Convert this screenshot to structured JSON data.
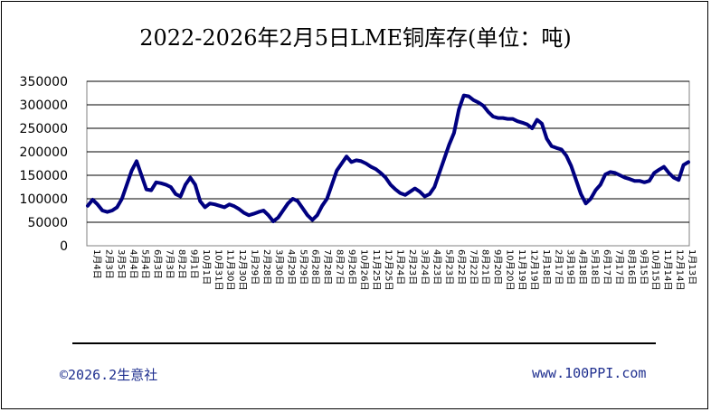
{
  "title": "2022-2026年2月5日LME铜库存(单位：吨)",
  "footer": {
    "copyright": "©2026.2生意社",
    "website": "www.100PPI.com"
  },
  "colors": {
    "line": "#000080",
    "footer_text": "#1f2f8f"
  },
  "chart_data": {
    "type": "line",
    "title": "2022-2026年2月5日LME铜库存(单位：吨)",
    "ylim": [
      0,
      350000
    ],
    "yticks": [
      0,
      50000,
      100000,
      150000,
      200000,
      250000,
      300000,
      350000
    ],
    "grid": true,
    "xlabels": [
      "1月4日",
      "2月3日",
      "3月5日",
      "4月4日",
      "5月4日",
      "6月3日",
      "7月3日",
      "8月2日",
      "9月1日",
      "10月1日",
      "10月31日",
      "11月30日",
      "12月30日",
      "1月29日",
      "2月28日",
      "3月30日",
      "4月29日",
      "5月29日",
      "6月28日",
      "7月28日",
      "8月27日",
      "9月26日",
      "10月26日",
      "11月25日",
      "12月25日",
      "1月24日",
      "2月23日",
      "3月24日",
      "4月23日",
      "5月23日",
      "6月22日",
      "7月22日",
      "8月21日",
      "9月20日",
      "10月20日",
      "11月19日",
      "12月19日",
      "1月18日",
      "2月17日",
      "3月19日",
      "4月18日",
      "5月18日",
      "6月17日",
      "7月17日",
      "8月16日",
      "9月15日",
      "10月15日",
      "11月14日",
      "12月14日",
      "1月13日"
    ],
    "series": [
      {
        "values": [
          85000,
          98000,
          88000,
          75000,
          72000,
          75000,
          82000,
          100000,
          130000,
          160000,
          180000,
          150000,
          120000,
          118000,
          135000,
          133000,
          130000,
          125000,
          110000,
          105000,
          130000,
          145000,
          130000,
          95000,
          82000,
          90000,
          88000,
          85000,
          82000,
          88000,
          84000,
          78000,
          70000,
          65000,
          68000,
          72000,
          75000,
          65000,
          52000,
          60000,
          75000,
          90000,
          100000,
          95000,
          80000,
          65000,
          55000,
          65000,
          85000,
          100000,
          130000,
          160000,
          175000,
          190000,
          178000,
          182000,
          180000,
          175000,
          168000,
          163000,
          155000,
          145000,
          130000,
          120000,
          112000,
          108000,
          115000,
          122000,
          115000,
          105000,
          110000,
          125000,
          155000,
          185000,
          215000,
          240000,
          290000,
          320000,
          318000,
          310000,
          305000,
          298000,
          285000,
          275000,
          272000,
          272000,
          270000,
          270000,
          265000,
          262000,
          258000,
          250000,
          268000,
          260000,
          228000,
          212000,
          208000,
          205000,
          192000,
          170000,
          140000,
          110000,
          90000,
          100000,
          118000,
          130000,
          152000,
          157000,
          155000,
          150000,
          145000,
          142000,
          138000,
          138000,
          135000,
          138000,
          155000,
          162000,
          168000,
          155000,
          145000,
          140000,
          172000,
          178000
        ]
      }
    ]
  }
}
